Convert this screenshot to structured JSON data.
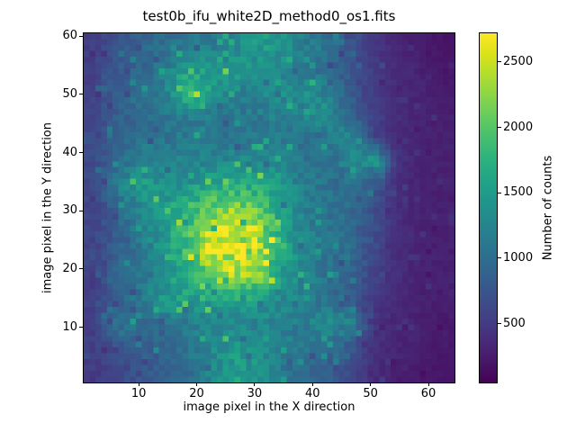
{
  "chart_data": {
    "type": "heatmap",
    "title": "test0b_ifu_white2D_method0_os1.fits",
    "xlabel": "image pixel in the X direction",
    "ylabel": "image pixel in the Y direction",
    "colorbar_label": "Number of counts",
    "colormap": "viridis",
    "nx": 64,
    "ny": 60,
    "x_range": [
      0.5,
      64.5
    ],
    "y_range": [
      0.5,
      60.5
    ],
    "x_ticks": [
      10,
      20,
      30,
      40,
      50,
      60
    ],
    "y_ticks": [
      10,
      20,
      30,
      40,
      50,
      60
    ],
    "colorbar_ticks": [
      500,
      1000,
      1500,
      2000,
      2500
    ],
    "vmin": 50,
    "vmax": 2720,
    "noise_fraction": 0.13,
    "grid_nx": 16,
    "grid_ny": 15,
    "grid_x_centers": [
      2.5,
      6.5,
      10.5,
      14.5,
      18.5,
      22.5,
      26.5,
      30.5,
      34.5,
      38.5,
      42.5,
      46.5,
      50.5,
      54.5,
      58.5,
      62.5
    ],
    "grid_y_centers_top_to_bottom": [
      58.5,
      54.5,
      50.5,
      46.5,
      42.5,
      38.5,
      34.5,
      30.5,
      26.5,
      22.5,
      18.5,
      14.5,
      10.5,
      6.5,
      2.5
    ],
    "counts_grid_rows_top_to_bottom": [
      [
        550,
        750,
        900,
        1000,
        1100,
        1150,
        1250,
        1500,
        1450,
        1200,
        1000,
        750,
        500,
        320,
        250,
        200
      ],
      [
        550,
        800,
        950,
        1150,
        1500,
        1500,
        1550,
        1400,
        1300,
        1100,
        950,
        750,
        500,
        380,
        300,
        220
      ],
      [
        600,
        850,
        1000,
        1200,
        2000,
        1500,
        1200,
        1250,
        1350,
        1400,
        1200,
        800,
        500,
        350,
        300,
        230
      ],
      [
        600,
        850,
        1000,
        1100,
        1200,
        1150,
        1100,
        1150,
        1250,
        1300,
        1350,
        900,
        550,
        380,
        320,
        280
      ],
      [
        650,
        900,
        1000,
        1050,
        1100,
        1100,
        1050,
        1100,
        1150,
        1000,
        1100,
        1350,
        600,
        350,
        300,
        290
      ],
      [
        650,
        950,
        1300,
        1300,
        1250,
        1250,
        1350,
        1300,
        1250,
        1100,
        1000,
        1200,
        1600,
        450,
        300,
        290
      ],
      [
        650,
        1200,
        1500,
        1350,
        1400,
        1600,
        1700,
        1600,
        1400,
        1150,
        1050,
        1000,
        800,
        400,
        300,
        290
      ],
      [
        600,
        950,
        1300,
        1500,
        1800,
        2100,
        2200,
        2100,
        1600,
        1200,
        1050,
        950,
        700,
        400,
        300,
        280
      ],
      [
        600,
        900,
        1200,
        1500,
        1900,
        2450,
        2650,
        2400,
        1650,
        1250,
        1100,
        950,
        700,
        400,
        300,
        280
      ],
      [
        600,
        850,
        1100,
        1450,
        1900,
        2500,
        2700,
        2450,
        1650,
        1300,
        1100,
        950,
        650,
        400,
        300,
        280
      ],
      [
        550,
        1050,
        1100,
        1300,
        1600,
        2000,
        2300,
        2200,
        1550,
        1250,
        1050,
        900,
        600,
        380,
        300,
        280
      ],
      [
        550,
        850,
        1100,
        1550,
        1500,
        1500,
        1550,
        1500,
        1300,
        1200,
        1000,
        800,
        500,
        350,
        300,
        270
      ],
      [
        550,
        1200,
        950,
        1000,
        1100,
        1250,
        1300,
        1250,
        1200,
        1150,
        1400,
        1300,
        450,
        330,
        290,
        220
      ],
      [
        550,
        700,
        850,
        950,
        1100,
        1300,
        1450,
        1400,
        1250,
        1100,
        1000,
        800,
        420,
        320,
        280,
        210
      ],
      [
        500,
        650,
        750,
        850,
        950,
        1250,
        1500,
        1400,
        1100,
        950,
        850,
        650,
        380,
        300,
        230,
        200
      ]
    ],
    "viridis_stops": [
      "#440154",
      "#48186a",
      "#472d7b",
      "#424086",
      "#3b528b",
      "#33638d",
      "#2c728e",
      "#26828e",
      "#21918c",
      "#1fa088",
      "#28ae80",
      "#3fbc73",
      "#5ec962",
      "#84d44b",
      "#addc30",
      "#d8e219",
      "#fde725"
    ]
  }
}
